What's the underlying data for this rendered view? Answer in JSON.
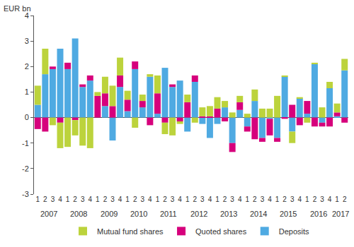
{
  "chart_data": {
    "type": "bar",
    "stacked": true,
    "ylabel": "EUR bn",
    "categories": [
      "1",
      "2",
      "3",
      "4",
      "1",
      "2",
      "3",
      "4",
      "1",
      "2",
      "3",
      "4",
      "1",
      "2",
      "3",
      "4",
      "1",
      "2",
      "3",
      "4",
      "1",
      "2",
      "3",
      "4",
      "1",
      "2",
      "3",
      "4",
      "1",
      "2",
      "3",
      "4",
      "1",
      "2",
      "3",
      "4",
      "1",
      "2",
      "3",
      "4",
      "1",
      "2"
    ],
    "years": [
      "2007",
      "2008",
      "2009",
      "2010",
      "2011",
      "2012",
      "2013",
      "2014",
      "2015",
      "2016",
      "2017"
    ],
    "series": [
      {
        "name": "Deposits",
        "color": "#4faae2",
        "values": [
          0.5,
          1.7,
          1.9,
          2.7,
          1.9,
          3.1,
          1.2,
          1.45,
          0,
          0.45,
          -0.9,
          1.2,
          0.25,
          1.9,
          0.4,
          1.6,
          0.15,
          1.95,
          1.2,
          1.45,
          -0.55,
          1.4,
          -0.25,
          -0.8,
          -0.25,
          0.4,
          -1.0,
          0.3,
          -0.35,
          0.65,
          -0.8,
          -0.05,
          -0.8,
          1.6,
          -0.55,
          0.75,
          0.15,
          2.1,
          -0.2,
          1.15,
          0.05,
          1.85
        ]
      },
      {
        "name": "Quoted shares",
        "color": "#d6007c",
        "values": [
          -0.45,
          -0.55,
          0.1,
          -0.2,
          0.25,
          -0.1,
          0.1,
          0.2,
          0.85,
          0.5,
          0.45,
          0.45,
          0.45,
          0.3,
          0.25,
          -0.3,
          0.8,
          -0.2,
          0.1,
          -0.15,
          0.6,
          0.25,
          0.05,
          0.05,
          0.35,
          -0.15,
          -0.35,
          0.3,
          -0.2,
          -0.85,
          -0.15,
          -0.65,
          -0.15,
          -0.05,
          0.5,
          -0.3,
          0.5,
          -0.35,
          -0.15,
          -0.35,
          0.15,
          -0.2
        ]
      },
      {
        "name": "Mutual fund shares",
        "color": "#bcd33c",
        "values": [
          0.75,
          1.0,
          -0.3,
          -1.0,
          -1.15,
          -0.6,
          -1.1,
          -1.2,
          0.15,
          0.65,
          0.8,
          0.7,
          0.35,
          -0.4,
          0.25,
          0.1,
          0.7,
          -0.45,
          -0.7,
          -0.1,
          0.3,
          -0.2,
          0.35,
          0.4,
          0.45,
          0.25,
          0.2,
          0.25,
          0.15,
          0.45,
          0.35,
          0.35,
          0.85,
          0.05,
          -0.45,
          0.05,
          -0.2,
          0.05,
          0.4,
          0.25,
          0.35,
          0.45
        ]
      }
    ],
    "ylim": [
      -3,
      4
    ],
    "yticks": [
      -3,
      -2,
      -1,
      0,
      1,
      2,
      3,
      4
    ],
    "grid": false,
    "legend": "bottom"
  }
}
